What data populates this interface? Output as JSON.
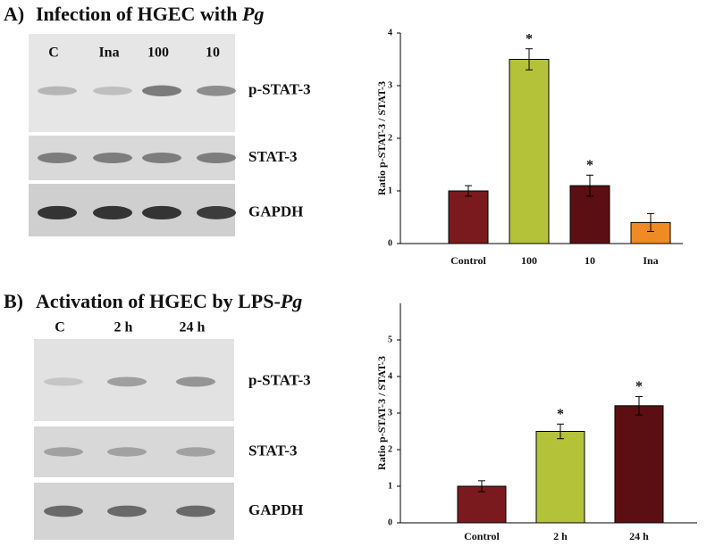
{
  "chart_data": [
    {
      "type": "bar",
      "y_label": "Ratio p-STAT-3 / STAT-3",
      "categories": [
        "Control",
        "100",
        "10",
        "Ina"
      ],
      "values": [
        1.0,
        3.5,
        1.1,
        0.4
      ],
      "errors": [
        0.1,
        0.2,
        0.2,
        0.17
      ],
      "annotations": [
        null,
        "*",
        "*",
        null
      ],
      "colors": [
        "#7a1a1e",
        "#b4c23a",
        "#5c0f12",
        "#f08a25"
      ],
      "ylim": [
        0,
        4
      ],
      "yticks": [
        0,
        1,
        2,
        3,
        4
      ]
    },
    {
      "type": "bar",
      "y_label": "Ratio p-STAT-3 / STAT-3",
      "categories": [
        "Control",
        "2 h",
        "24 h"
      ],
      "values": [
        1.0,
        2.5,
        3.2
      ],
      "errors": [
        0.15,
        0.2,
        0.25
      ],
      "annotations": [
        null,
        "*",
        "*"
      ],
      "colors": [
        "#7a1a1e",
        "#b4c23a",
        "#5c0f12"
      ],
      "ylim": [
        0,
        6
      ],
      "yticks": [
        0,
        1,
        2,
        3,
        4,
        5
      ]
    }
  ],
  "blots": [
    {
      "panel": "A)",
      "title": "Infection of HGEC with ",
      "title_italic": "Pg",
      "lanes": [
        "C",
        "Ina",
        "100",
        "10"
      ],
      "rows": [
        "p-STAT-3",
        "STAT-3",
        "GAPDH"
      ]
    },
    {
      "panel": "B)",
      "title": "Activation of HGEC by LPS-",
      "title_italic": "Pg",
      "lanes": [
        "C",
        "2 h",
        "24 h"
      ],
      "rows": [
        "p-STAT-3",
        "STAT-3",
        "GAPDH"
      ]
    }
  ]
}
